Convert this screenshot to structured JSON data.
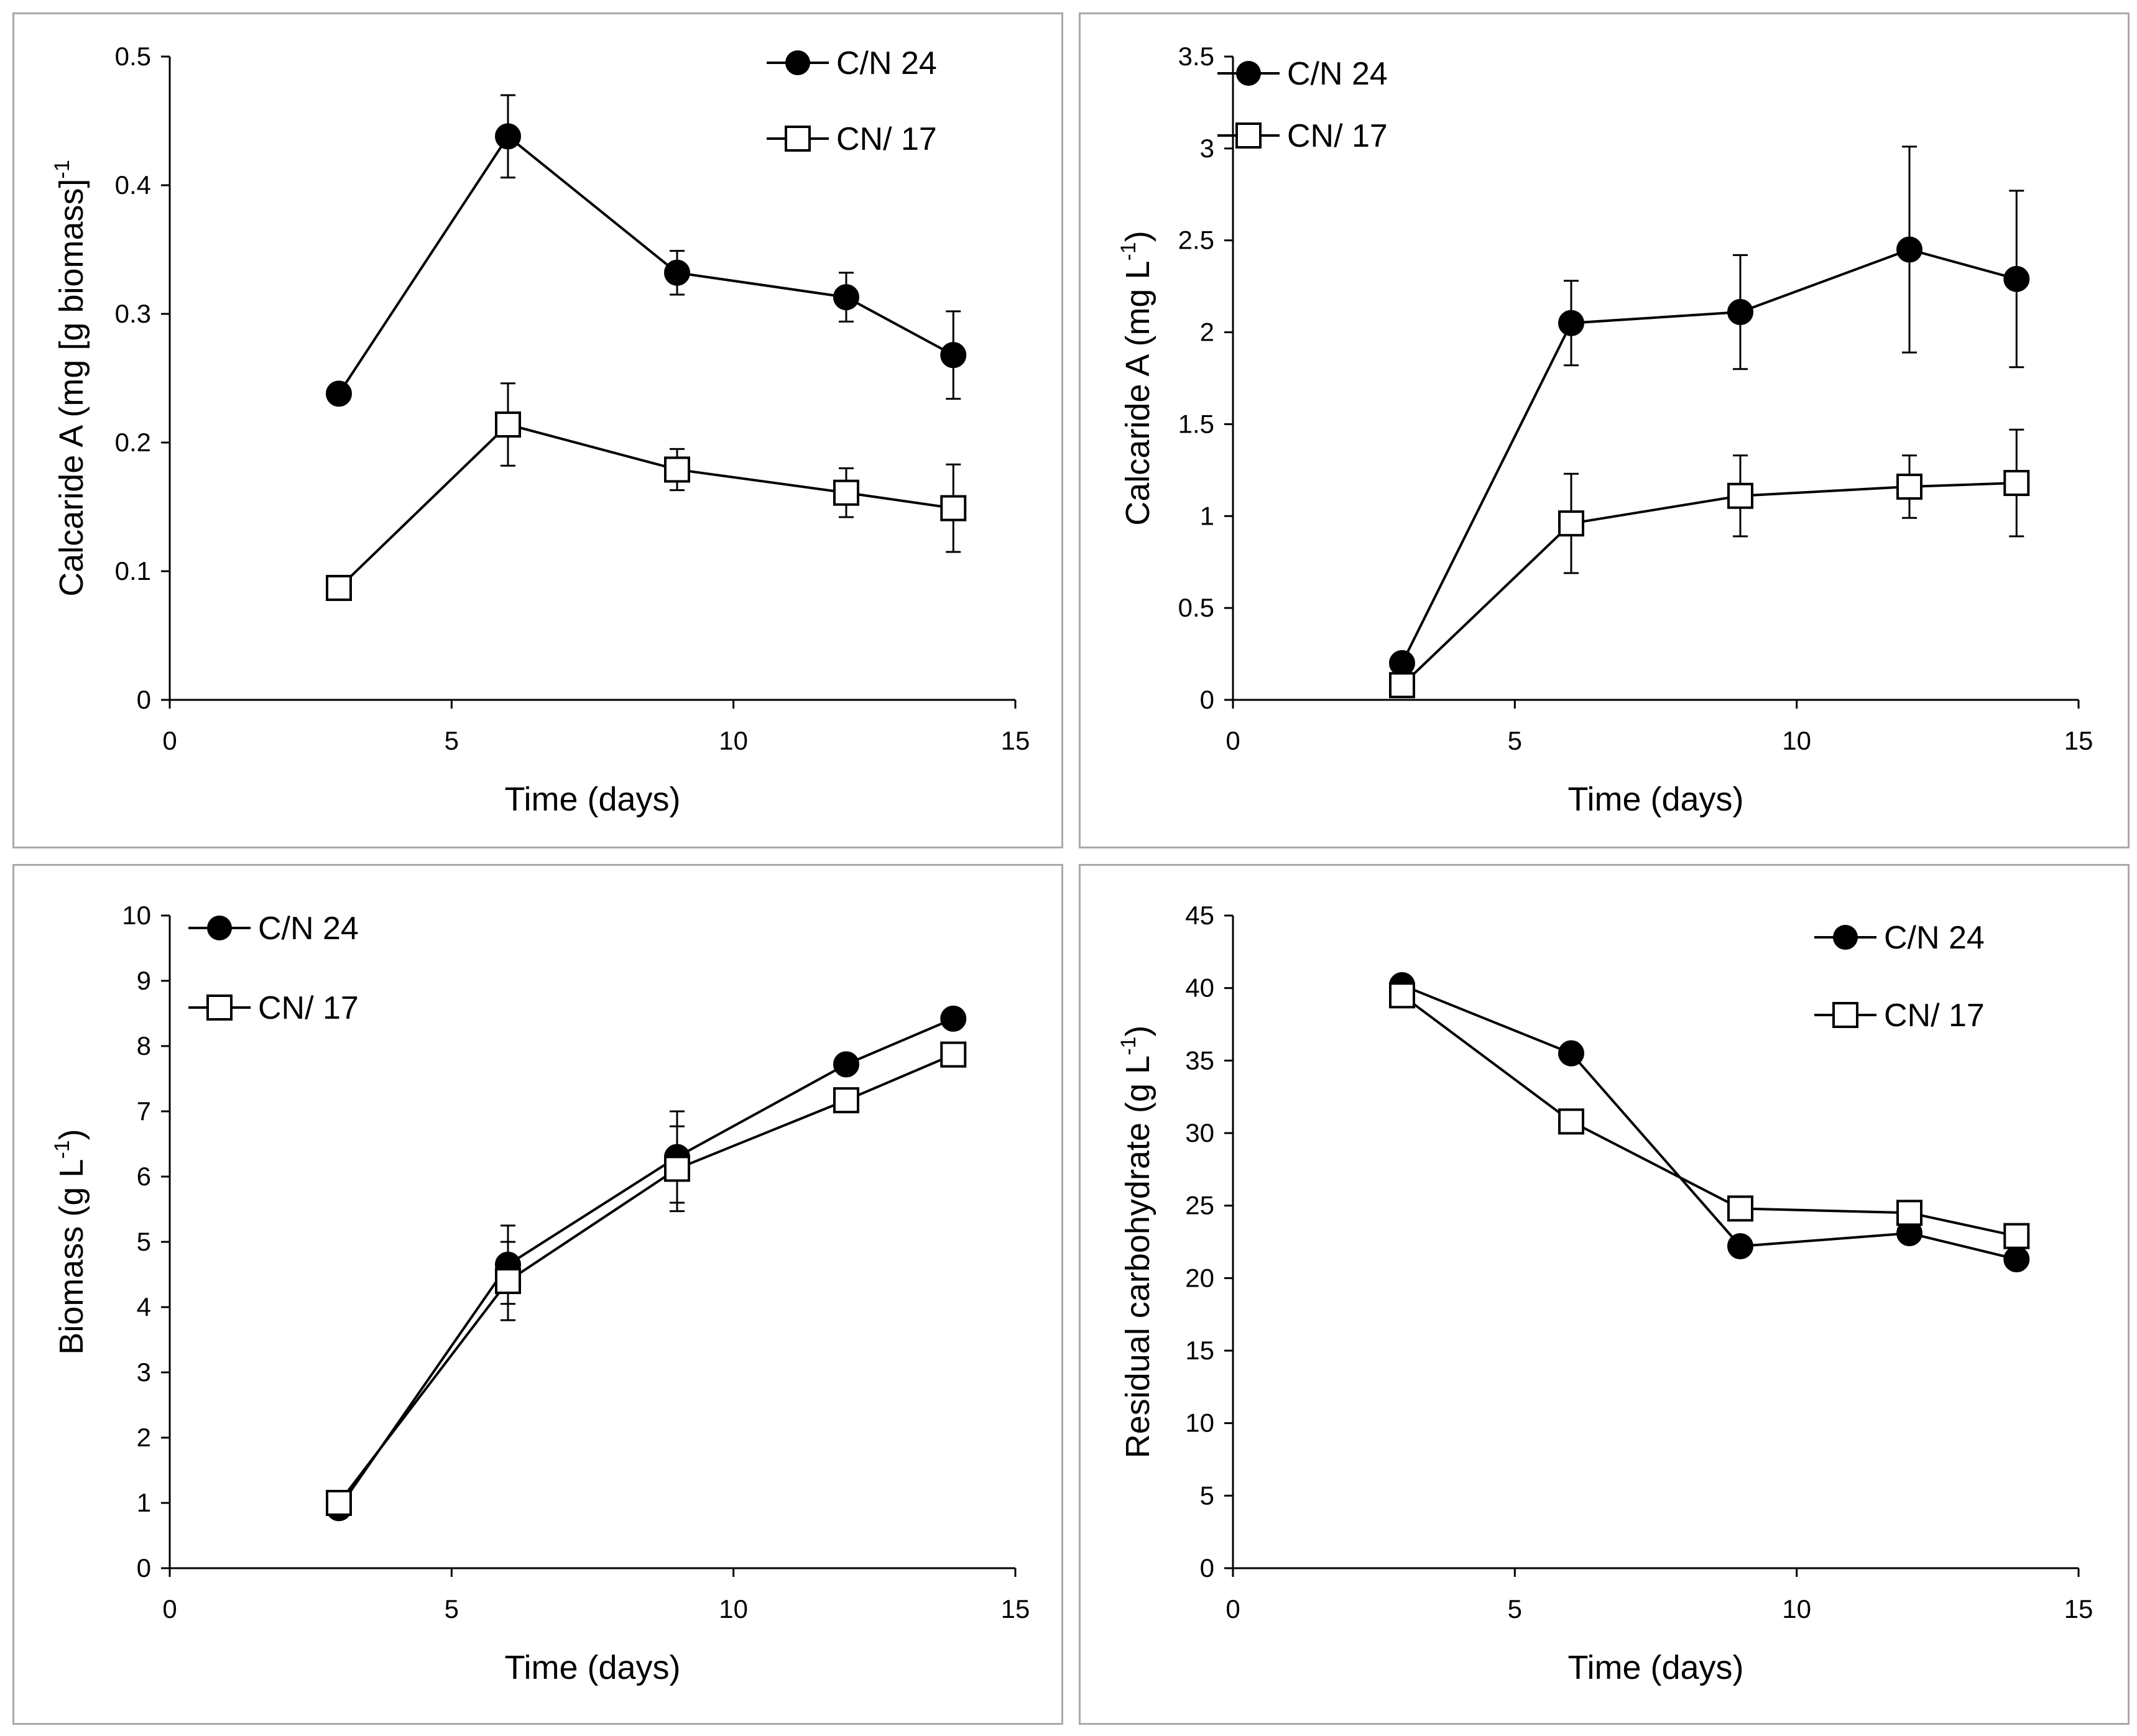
{
  "chart_data": [
    {
      "type": "line",
      "xlabel": "Time (days)",
      "ylabel": "Calcaride A (mg [g biomass]",
      "ylabel_sup": "-1",
      "ylabel_suffix": "",
      "xlim": [
        0,
        15
      ],
      "ylim": [
        0,
        0.5
      ],
      "xticks": [
        "0",
        "5",
        "10",
        "15"
      ],
      "yticks": [
        "0",
        "0.1",
        "0.2",
        "0.3",
        "0.4",
        "0.5"
      ],
      "legend_position": "top-right",
      "series": [
        {
          "name": "C/N 24",
          "marker": "filled-circle",
          "x": [
            3,
            6,
            9,
            12,
            13.9
          ],
          "y": [
            0.238,
            0.438,
            0.332,
            0.313,
            0.268
          ],
          "err": [
            0,
            0.032,
            0.017,
            0.019,
            0.034
          ]
        },
        {
          "name": "CN/ 17",
          "marker": "open-square",
          "x": [
            3,
            6,
            9,
            12,
            13.9
          ],
          "y": [
            0.087,
            0.214,
            0.179,
            0.161,
            0.149
          ],
          "err": [
            0,
            0.032,
            0.016,
            0.019,
            0.034
          ]
        }
      ]
    },
    {
      "type": "line",
      "xlabel": "Time (days)",
      "ylabel": "Calcaride A (mg L",
      "ylabel_sup": "-1",
      "ylabel_suffix": ")",
      "xlim": [
        0,
        15
      ],
      "ylim": [
        0,
        3.5
      ],
      "xticks": [
        "0",
        "5",
        "10",
        "15"
      ],
      "yticks": [
        "0",
        "0.5",
        "1",
        "1.5",
        "2",
        "2.5",
        "3",
        "3.5"
      ],
      "legend_position": "top-left",
      "series": [
        {
          "name": "C/N 24",
          "marker": "filled-circle",
          "x": [
            3,
            6,
            9,
            12,
            13.9
          ],
          "y": [
            0.2,
            2.05,
            2.11,
            2.45,
            2.29
          ],
          "err": [
            0,
            0.23,
            0.31,
            0.56,
            0.48
          ]
        },
        {
          "name": "CN/ 17",
          "marker": "open-square",
          "x": [
            3,
            6,
            9,
            12,
            13.9
          ],
          "y": [
            0.08,
            0.96,
            1.11,
            1.16,
            1.18
          ],
          "err": [
            0,
            0.27,
            0.22,
            0.17,
            0.29
          ]
        }
      ]
    },
    {
      "type": "line",
      "xlabel": "Time (days)",
      "ylabel": "Biomass (g L",
      "ylabel_sup": "-1",
      "ylabel_suffix": ")",
      "xlim": [
        0,
        15
      ],
      "ylim": [
        0,
        10
      ],
      "xticks": [
        "0",
        "5",
        "10",
        "15"
      ],
      "yticks": [
        "0",
        "1",
        "2",
        "3",
        "4",
        "5",
        "6",
        "7",
        "8",
        "9",
        "10"
      ],
      "legend_position": "top-left",
      "series": [
        {
          "name": "C/N 24",
          "marker": "filled-circle",
          "x": [
            3,
            6,
            9,
            12,
            13.9
          ],
          "y": [
            0.92,
            4.65,
            6.3,
            7.72,
            8.42
          ],
          "err": [
            0,
            0.6,
            0.7,
            0,
            0.15
          ]
        },
        {
          "name": "CN/ 17",
          "marker": "open-square",
          "x": [
            3,
            6,
            9,
            12,
            13.9
          ],
          "y": [
            1.0,
            4.4,
            6.12,
            7.17,
            7.87
          ],
          "err": [
            0,
            0.6,
            0.65,
            0,
            0
          ]
        }
      ]
    },
    {
      "type": "line",
      "xlabel": "Time (days)",
      "ylabel": "Residual carbohydrate (g L",
      "ylabel_sup": "-1",
      "ylabel_suffix": ")",
      "xlim": [
        0,
        15
      ],
      "ylim": [
        0,
        45
      ],
      "xticks": [
        "0",
        "5",
        "10",
        "15"
      ],
      "yticks": [
        "0",
        "5",
        "10",
        "15",
        "20",
        "25",
        "30",
        "35",
        "40",
        "45"
      ],
      "legend_position": "top-right",
      "series": [
        {
          "name": "C/N 24",
          "marker": "filled-circle",
          "x": [
            3,
            6,
            9,
            12,
            13.9
          ],
          "y": [
            40.2,
            35.5,
            22.2,
            23.1,
            21.3
          ],
          "err": [
            0,
            0,
            0,
            0,
            0
          ]
        },
        {
          "name": "CN/ 17",
          "marker": "open-square",
          "x": [
            3,
            6,
            9,
            12,
            13.9
          ],
          "y": [
            39.5,
            30.8,
            24.8,
            24.5,
            22.9
          ],
          "err": [
            0,
            0,
            0,
            0,
            0
          ]
        }
      ]
    }
  ]
}
